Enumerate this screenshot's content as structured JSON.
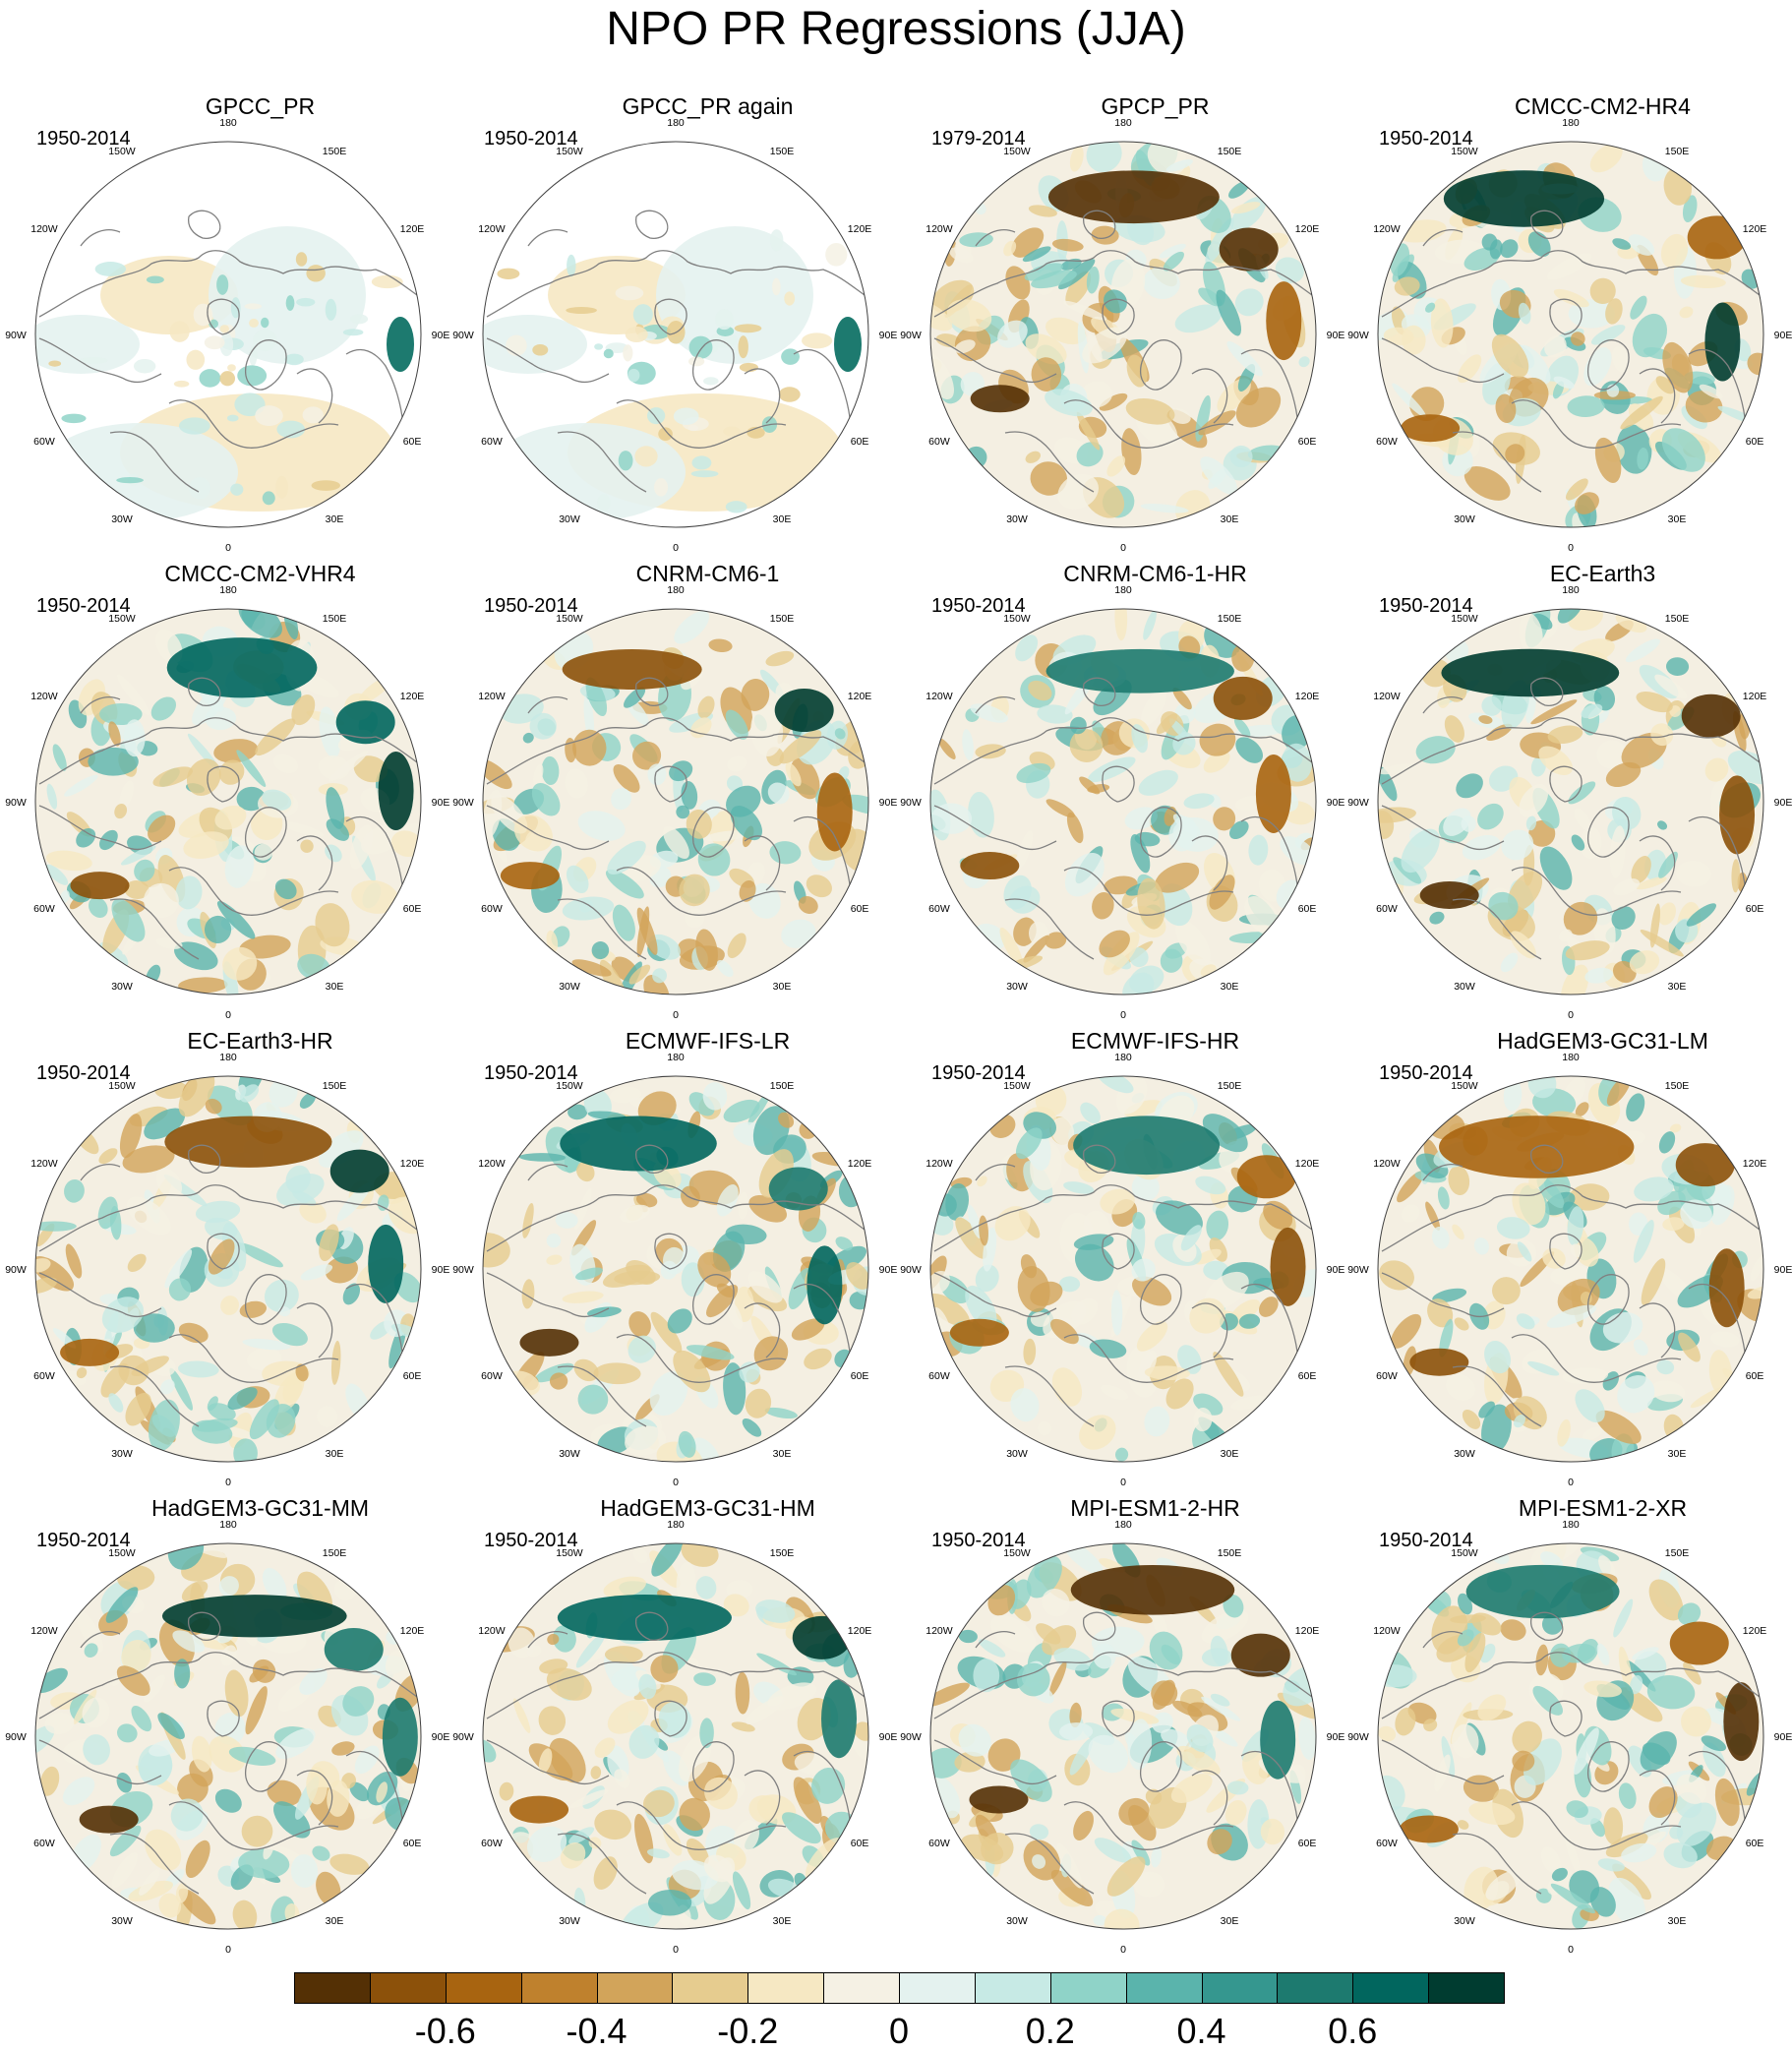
{
  "title": "NPO PR Regressions (JJA)",
  "lon_labels": [
    "180",
    "150E",
    "120E",
    "90E",
    "60E",
    "30E",
    "0",
    "30W",
    "60W",
    "90W",
    "120W",
    "150W"
  ],
  "panels": [
    {
      "title": "GPCC_PR",
      "years": "1950-2014",
      "pattern": "obs-gpcc"
    },
    {
      "title": "GPCC_PR again",
      "years": "1950-2014",
      "pattern": "obs-gpcc"
    },
    {
      "title": "GPCP_PR",
      "years": "1979-2014",
      "pattern": "gpcp"
    },
    {
      "title": "CMCC-CM2-HR4",
      "years": "1950-2014",
      "pattern": "model"
    },
    {
      "title": "CMCC-CM2-VHR4",
      "years": "1950-2014",
      "pattern": "model"
    },
    {
      "title": "CNRM-CM6-1",
      "years": "1950-2014",
      "pattern": "model"
    },
    {
      "title": "CNRM-CM6-1-HR",
      "years": "1950-2014",
      "pattern": "model"
    },
    {
      "title": "EC-Earth3",
      "years": "1950-2014",
      "pattern": "model"
    },
    {
      "title": "EC-Earth3-HR",
      "years": "1950-2014",
      "pattern": "model"
    },
    {
      "title": "ECMWF-IFS-LR",
      "years": "1950-2014",
      "pattern": "model"
    },
    {
      "title": "ECMWF-IFS-HR",
      "years": "1950-2014",
      "pattern": "model"
    },
    {
      "title": "HadGEM3-GC31-LM",
      "years": "1950-2014",
      "pattern": "model"
    },
    {
      "title": "HadGEM3-GC31-MM",
      "years": "1950-2014",
      "pattern": "model"
    },
    {
      "title": "HadGEM3-GC31-HM",
      "years": "1950-2014",
      "pattern": "model"
    },
    {
      "title": "MPI-ESM1-2-HR",
      "years": "1950-2014",
      "pattern": "model"
    },
    {
      "title": "MPI-ESM1-2-XR",
      "years": "1950-2014",
      "pattern": "model"
    }
  ],
  "colorbar": {
    "colors": [
      "#543005",
      "#8c510a",
      "#a86410",
      "#bf812d",
      "#d2a45a",
      "#e6cc8f",
      "#f6e8c3",
      "#f5f1e4",
      "#e4f2ef",
      "#c7eae5",
      "#8fd3c8",
      "#5ab4ac",
      "#35978f",
      "#1d7a6f",
      "#01665e",
      "#003c30"
    ],
    "tick_labels": [
      "-0.6",
      "-0.4",
      "-0.2",
      "0",
      "0.2",
      "0.4",
      "0.6"
    ]
  },
  "colors": {
    "land_outline": "#808080",
    "circle_outline": "#404040",
    "neutral": "#f4efe2"
  }
}
